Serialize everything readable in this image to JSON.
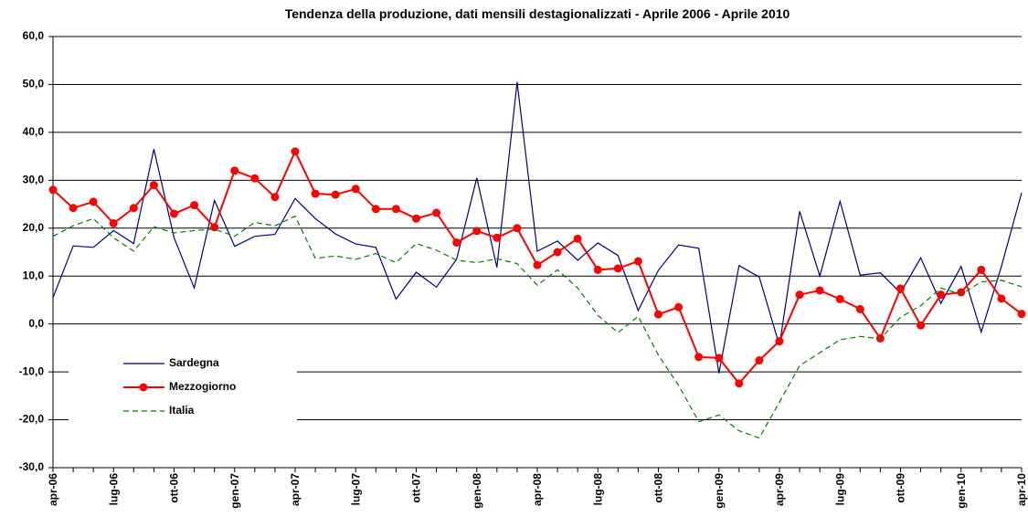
{
  "chart_data": {
    "type": "line",
    "title": "Tendenza della produzione, dati mensili destagionalizzati - Aprile 2006 - Aprile 2010",
    "categories": [
      "apr-06",
      null,
      null,
      "lug-06",
      null,
      null,
      "ott-06",
      null,
      null,
      "gen-07",
      null,
      null,
      "apr-07",
      null,
      null,
      "lug-07",
      null,
      null,
      "ott-07",
      null,
      null,
      "gen-08",
      null,
      null,
      "apr-08",
      null,
      null,
      "lug-08",
      null,
      null,
      "ott-08",
      null,
      null,
      "gen-09",
      null,
      null,
      "apr-09",
      null,
      null,
      "lug-09",
      null,
      null,
      "ott-09",
      null,
      null,
      "gen-10",
      null,
      null,
      "apr-10"
    ],
    "series": [
      {
        "name": "Sardegna",
        "color": "#000080",
        "dash": false,
        "markers": false,
        "values": [
          5.5,
          16.3,
          16.0,
          19.5,
          16.8,
          36.5,
          18.0,
          7.5,
          25.8,
          16.2,
          18.3,
          18.7,
          26.2,
          22.0,
          18.8,
          16.7,
          16.0,
          5.2,
          10.8,
          7.7,
          13.5,
          30.5,
          11.8,
          50.5,
          15.2,
          17.3,
          13.3,
          16.9,
          14.3,
          2.8,
          11.2,
          16.5,
          15.8,
          -10.3,
          12.2,
          9.8,
          -4.5,
          23.5,
          10.0,
          25.6,
          10.2,
          10.7,
          6.5,
          13.8,
          4.3,
          12.0,
          -1.7,
          12.0,
          27.4
        ]
      },
      {
        "name": "Mezzogiorno",
        "color": "#ff0000",
        "dash": false,
        "markers": true,
        "values": [
          28.0,
          24.2,
          25.5,
          21.0,
          24.2,
          29.0,
          23.0,
          24.8,
          20.2,
          32.0,
          30.4,
          26.5,
          36.0,
          27.2,
          27.0,
          28.2,
          24.0,
          24.0,
          22.0,
          23.2,
          17.0,
          19.4,
          18.0,
          20.0,
          12.3,
          15.0,
          17.8,
          11.3,
          11.6,
          13.1,
          2.0,
          3.5,
          -6.9,
          -7.1,
          -12.4,
          -7.6,
          -3.6,
          6.1,
          7.0,
          5.2,
          3.1,
          -3.0,
          7.4,
          -0.3,
          6.1,
          6.6,
          11.3,
          5.3,
          2.1
        ]
      },
      {
        "name": "Italia",
        "color": "#008000",
        "dash": true,
        "markers": false,
        "values": [
          18.3,
          20.5,
          22.0,
          18.0,
          15.2,
          20.3,
          19.0,
          19.5,
          19.8,
          18.3,
          21.2,
          20.5,
          22.5,
          13.7,
          14.2,
          13.5,
          14.7,
          12.8,
          16.8,
          15.4,
          13.3,
          12.8,
          13.6,
          12.6,
          8.1,
          11.3,
          7.5,
          1.8,
          -1.8,
          1.6,
          -6.5,
          -12.8,
          -20.4,
          -19.0,
          -22.3,
          -23.8,
          -16.3,
          -8.7,
          -6.0,
          -3.3,
          -2.6,
          -3.1,
          1.4,
          3.8,
          7.5,
          6.2,
          8.8,
          9.1,
          7.8
        ]
      }
    ],
    "ylim": [
      -30,
      60
    ],
    "yticks": [
      {
        "value": -30,
        "label": "-30,0"
      },
      {
        "value": -20,
        "label": "-20,0"
      },
      {
        "value": -10,
        "label": "-10,0"
      },
      {
        "value": 0,
        "label": "0,0"
      },
      {
        "value": 10,
        "label": "10,0"
      },
      {
        "value": 20,
        "label": "20,0"
      },
      {
        "value": 30,
        "label": "30,0"
      },
      {
        "value": 40,
        "label": "40,0"
      },
      {
        "value": 50,
        "label": "50,0"
      },
      {
        "value": 60,
        "label": "60,0"
      }
    ],
    "grid": true,
    "legend": "lower-left"
  }
}
